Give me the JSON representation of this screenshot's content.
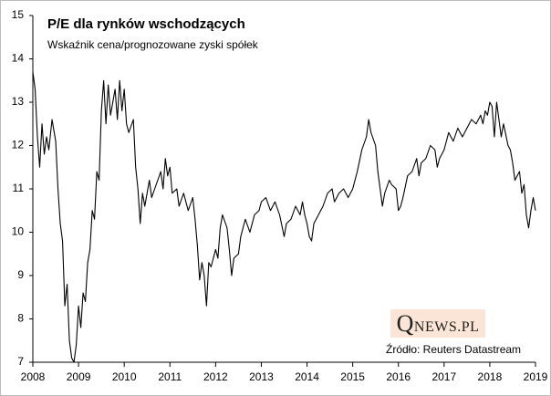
{
  "chart_data": {
    "type": "line",
    "title": "P/E dla rynków wschodzących",
    "subtitle": "Wskaźnik cena/prognozowane zyski spółek",
    "source": "Źródło: Reuters Datastream",
    "watermark": "QNEWS.PL",
    "color": "#000000",
    "xlim": [
      2008,
      2019
    ],
    "xticks": [
      2008,
      2009,
      2010,
      2011,
      2012,
      2013,
      2014,
      2015,
      2016,
      2017,
      2018,
      2019
    ],
    "ylim": [
      7,
      15
    ],
    "yticks": [
      7,
      8,
      9,
      10,
      11,
      12,
      13,
      14,
      15
    ],
    "grid": false,
    "x": [
      2008.0,
      2008.05,
      2008.1,
      2008.15,
      2008.2,
      2008.25,
      2008.3,
      2008.35,
      2008.42,
      2008.5,
      2008.55,
      2008.6,
      2008.65,
      2008.7,
      2008.75,
      2008.8,
      2008.85,
      2008.9,
      2008.95,
      2009.0,
      2009.05,
      2009.1,
      2009.15,
      2009.2,
      2009.25,
      2009.3,
      2009.35,
      2009.4,
      2009.45,
      2009.5,
      2009.55,
      2009.6,
      2009.65,
      2009.7,
      2009.8,
      2009.85,
      2009.9,
      2009.95,
      2010.0,
      2010.05,
      2010.1,
      2010.2,
      2010.25,
      2010.3,
      2010.35,
      2010.4,
      2010.45,
      2010.55,
      2010.6,
      2010.7,
      2010.8,
      2010.85,
      2010.9,
      2010.95,
      2011.0,
      2011.05,
      2011.15,
      2011.2,
      2011.3,
      2011.4,
      2011.5,
      2011.55,
      2011.6,
      2011.65,
      2011.7,
      2011.75,
      2011.8,
      2011.85,
      2011.9,
      2012.0,
      2012.05,
      2012.1,
      2012.15,
      2012.25,
      2012.3,
      2012.35,
      2012.4,
      2012.5,
      2012.55,
      2012.65,
      2012.75,
      2012.85,
      2012.95,
      2013.0,
      2013.1,
      2013.2,
      2013.3,
      2013.4,
      2013.5,
      2013.55,
      2013.65,
      2013.75,
      2013.85,
      2013.9,
      2013.95,
      2014.0,
      2014.05,
      2014.1,
      2014.15,
      2014.25,
      2014.35,
      2014.45,
      2014.55,
      2014.6,
      2014.7,
      2014.8,
      2014.9,
      2015.0,
      2015.1,
      2015.2,
      2015.3,
      2015.35,
      2015.4,
      2015.5,
      2015.55,
      2015.6,
      2015.65,
      2015.7,
      2015.8,
      2015.85,
      2015.95,
      2016.0,
      2016.05,
      2016.1,
      2016.2,
      2016.3,
      2016.4,
      2016.45,
      2016.5,
      2016.6,
      2016.7,
      2016.8,
      2016.85,
      2016.9,
      2017.0,
      2017.1,
      2017.2,
      2017.3,
      2017.4,
      2017.5,
      2017.6,
      2017.7,
      2017.8,
      2017.85,
      2017.9,
      2017.95,
      2018.0,
      2018.05,
      2018.1,
      2018.15,
      2018.2,
      2018.25,
      2018.3,
      2018.4,
      2018.45,
      2018.5,
      2018.55,
      2018.65,
      2018.7,
      2018.75,
      2018.8,
      2018.85,
      2018.9,
      2018.95,
      2019.0
    ],
    "values": [
      13.7,
      13.3,
      12.2,
      11.5,
      12.5,
      11.8,
      12.2,
      11.9,
      12.6,
      12.1,
      11.0,
      10.2,
      9.8,
      8.3,
      8.8,
      7.5,
      7.1,
      7.0,
      7.4,
      8.3,
      7.8,
      8.6,
      8.4,
      9.3,
      9.6,
      10.5,
      10.3,
      11.4,
      11.2,
      12.8,
      13.5,
      12.5,
      13.4,
      12.7,
      13.3,
      12.6,
      13.5,
      12.8,
      13.3,
      12.5,
      12.3,
      12.6,
      11.5,
      11.0,
      10.2,
      10.9,
      10.6,
      11.2,
      10.8,
      11.1,
      11.4,
      11.0,
      11.7,
      11.3,
      11.5,
      10.9,
      11.0,
      10.6,
      10.9,
      10.5,
      10.8,
      10.3,
      9.7,
      8.9,
      9.3,
      9.0,
      8.3,
      9.3,
      9.2,
      9.6,
      9.4,
      10.1,
      10.4,
      10.1,
      9.6,
      9.0,
      9.4,
      9.5,
      9.9,
      10.3,
      10.0,
      10.4,
      10.5,
      10.7,
      10.8,
      10.5,
      10.7,
      10.4,
      9.9,
      10.2,
      10.3,
      10.6,
      10.4,
      10.7,
      10.4,
      10.2,
      9.9,
      9.8,
      10.2,
      10.4,
      10.6,
      10.9,
      11.0,
      10.7,
      10.9,
      11.0,
      10.8,
      11.0,
      11.4,
      11.9,
      12.2,
      12.6,
      12.3,
      12.0,
      11.4,
      11.0,
      10.6,
      10.9,
      11.2,
      11.1,
      11.0,
      10.5,
      10.6,
      10.8,
      11.3,
      11.4,
      11.7,
      11.3,
      11.6,
      11.7,
      12.0,
      11.9,
      11.5,
      11.7,
      11.9,
      12.3,
      12.1,
      12.4,
      12.2,
      12.4,
      12.6,
      12.5,
      12.7,
      12.5,
      12.8,
      12.7,
      13.0,
      12.9,
      12.2,
      13.0,
      12.6,
      12.2,
      12.5,
      12.0,
      11.9,
      11.6,
      11.2,
      11.4,
      10.9,
      11.1,
      10.4,
      10.1,
      10.5,
      10.8,
      10.5
    ]
  }
}
